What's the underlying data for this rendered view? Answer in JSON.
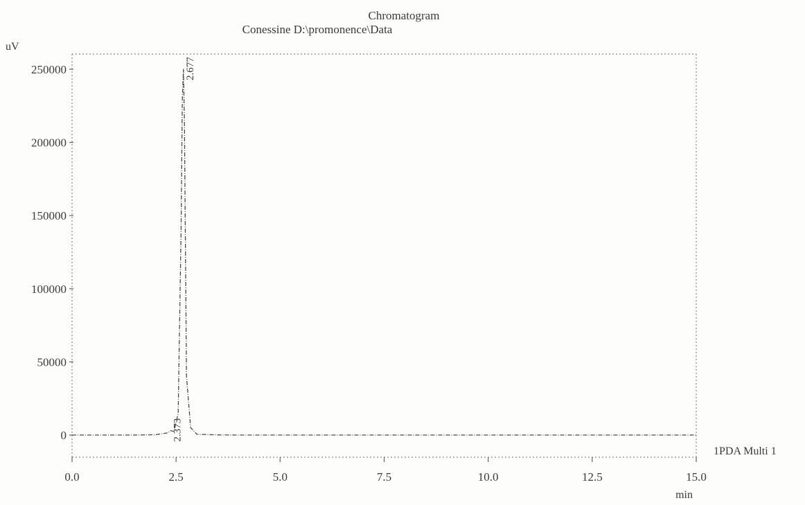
{
  "chart_data": {
    "type": "line",
    "title": "Chromatogram",
    "subtitle": "Conessine D:\\promonence\\Data",
    "ylabel": "uV",
    "xlabel": "min",
    "xlim": [
      0.0,
      15.0
    ],
    "ylim": [
      -15000,
      260000
    ],
    "x_ticks": [
      "0.0",
      "2.5",
      "5.0",
      "7.5",
      "10.0",
      "12.5",
      "15.0"
    ],
    "y_ticks": [
      "0",
      "50000",
      "100000",
      "150000",
      "200000",
      "250000"
    ],
    "grid": false,
    "legend": "right",
    "series": [
      {
        "name": "1PDA Multi 1",
        "x": [
          0.0,
          0.5,
          1.0,
          1.5,
          2.0,
          2.3,
          2.373,
          2.45,
          2.55,
          2.62,
          2.65,
          2.677,
          2.7,
          2.75,
          2.85,
          3.0,
          3.5,
          4.0,
          5.0,
          7.5,
          10.0,
          12.5,
          15.0
        ],
        "values": [
          0,
          0,
          0,
          0,
          200,
          1500,
          3000,
          2500,
          15000,
          140000,
          230000,
          250000,
          215000,
          40000,
          5000,
          500,
          100,
          0,
          0,
          0,
          0,
          0,
          0
        ]
      }
    ],
    "peak_labels": [
      {
        "label": "2.677",
        "x": 2.677,
        "y": 250000
      },
      {
        "label": "2.373",
        "x": 2.373,
        "y": 3000
      }
    ]
  }
}
